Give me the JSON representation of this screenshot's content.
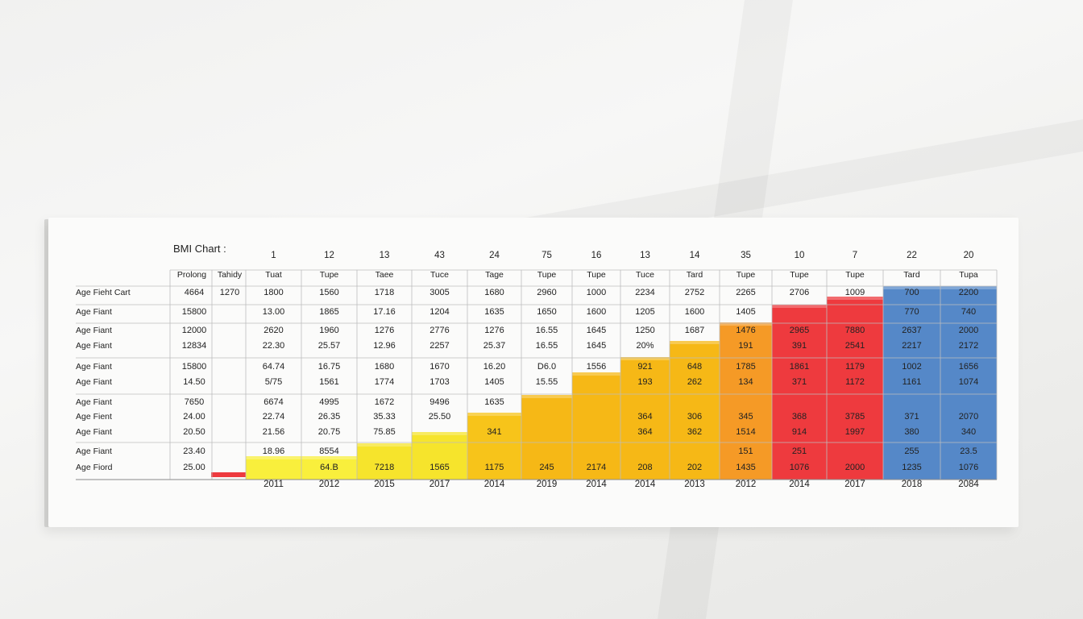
{
  "chart_data": {
    "type": "table",
    "title": "BMI Chart :",
    "column_numbers": [
      "1",
      "12",
      "13",
      "43",
      "24",
      "75",
      "16",
      "13",
      "14",
      "35",
      "10",
      "7",
      "22",
      "20"
    ],
    "header_row": [
      "Prolong",
      "Tahidy",
      "Tuat",
      "Tupe",
      "Taee",
      "Tuce",
      "Tage",
      "Tupe",
      "Tupe",
      "Tuce",
      "Tard",
      "Tupe",
      "Tupe",
      "Tupe",
      "Tard",
      "Tupa"
    ],
    "row_labels": [
      "Age Fieht Cart",
      "Age Fiant",
      "Age Fiant",
      "Age Fiant",
      "Age Fiant",
      "Age Fiant",
      "Age Fiant",
      "Age Fient",
      "Age Fiant",
      "Age Fiant",
      "Age Fiord"
    ],
    "label_values": [
      [
        "4664",
        "1270"
      ],
      [
        "15800",
        ""
      ],
      [
        "12000",
        ""
      ],
      [
        "12834",
        ""
      ],
      [
        "15800",
        ""
      ],
      [
        "14.50",
        ""
      ],
      [
        "7650",
        ""
      ],
      [
        "24.00",
        ""
      ],
      [
        "20.50",
        ""
      ],
      [
        "23.40",
        ""
      ],
      [
        "25.00",
        ""
      ]
    ],
    "cells": [
      [
        "1800",
        "1560",
        "1718",
        "3005",
        "1680",
        "2960",
        "1000",
        "2234",
        "2752",
        "2265",
        "2706",
        "1009",
        "700",
        "2200"
      ],
      [
        "13.00",
        "1865",
        "17.16",
        "1204",
        "1635",
        "1650",
        "1600",
        "1205",
        "1600",
        "1405",
        "",
        "",
        "770",
        "740"
      ],
      [
        "2620",
        "1960",
        "1276",
        "2776",
        "1276",
        "16.55",
        "1645",
        "1250",
        "1687",
        "1476",
        "2965",
        "7880",
        "2637",
        "2000"
      ],
      [
        "22.30",
        "25.57",
        "12.96",
        "2257",
        "25.37",
        "16.55",
        "1645",
        "20%",
        "",
        "191",
        "391",
        "2541",
        "2217",
        "2172"
      ],
      [
        "64.74",
        "16.75",
        "1680",
        "1670",
        "16.20",
        "D6.0",
        "1556",
        "921",
        "648",
        "1785",
        "1861",
        "1179",
        "1002",
        "1656"
      ],
      [
        "5/75",
        "1561",
        "1774",
        "1703",
        "1405",
        "15.55",
        "",
        "193",
        "262",
        "134",
        "371",
        "1172",
        "1161",
        "1074"
      ],
      [
        "6674",
        "4995",
        "1672",
        "9496",
        "1635",
        "",
        "",
        "",
        "",
        "",
        "",
        "",
        "",
        ""
      ],
      [
        "22.74",
        "26.35",
        "35.33",
        "25.50",
        "",
        "",
        "",
        "364",
        "306",
        "345",
        "368",
        "3785",
        "371",
        "2070"
      ],
      [
        "21.56",
        "20.75",
        "75.85",
        "",
        "341",
        "",
        "",
        "364",
        "362",
        "1514",
        "914",
        "1997",
        "380",
        "340"
      ],
      [
        "18.96",
        "8554",
        "",
        "",
        "",
        "",
        "",
        "",
        "",
        "151",
        "251",
        "",
        "255",
        "23.5"
      ],
      [
        "",
        "64.B",
        "7218",
        "1565",
        "1175",
        "245",
        "2174",
        "208",
        "202",
        "1435",
        "1076",
        "2000",
        "1235",
        "1076"
      ]
    ],
    "x_labels": [
      "2011",
      "2012",
      "2015",
      "2017",
      "2014",
      "2019",
      "2014",
      "2014",
      "2013",
      "2012",
      "2014",
      "2017",
      "2018",
      "2084"
    ],
    "colors": {
      "yellow_light": "#f9ef3c",
      "yellow": "#f6e42c",
      "amber": "#f7c41a",
      "gold": "#f6b816",
      "orange": "#f59a26",
      "red": "#ee3a3e",
      "blue": "#5588c8",
      "grid": "#bdbdbd",
      "text": "#222222"
    }
  }
}
